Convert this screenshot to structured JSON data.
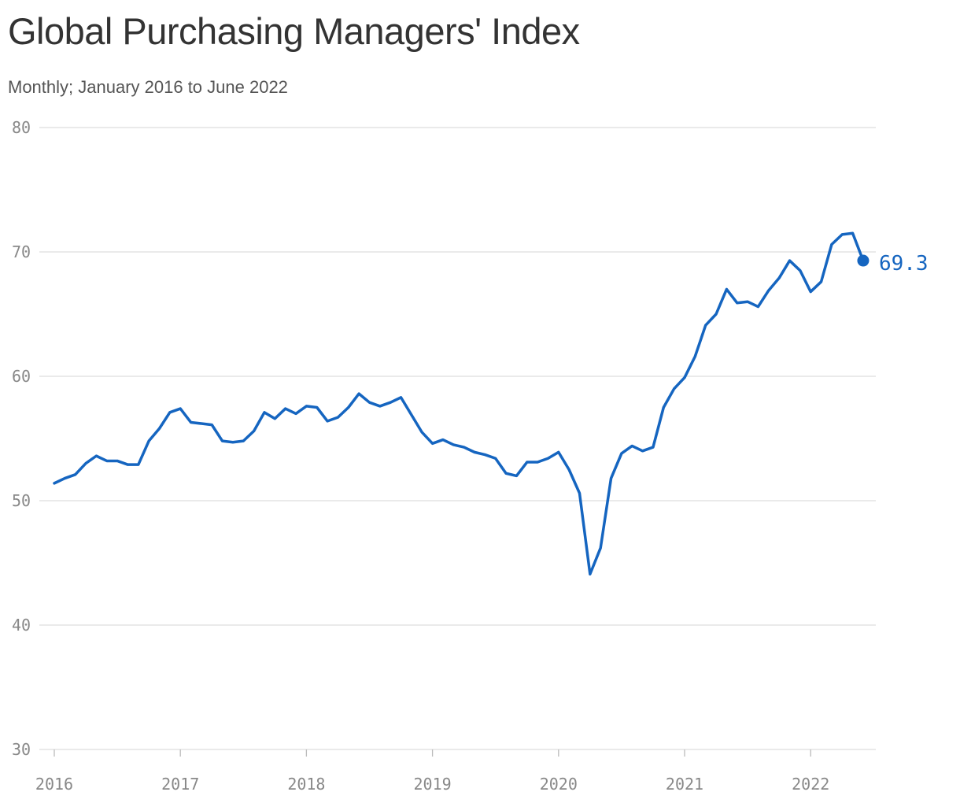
{
  "title": "Global Purchasing Managers' Index",
  "subtitle": "Monthly; January 2016 to June 2022",
  "colors": {
    "line": "#1565c0",
    "grid": "#dddddd",
    "tick_text": "#888888",
    "title": "#333333"
  },
  "chart_data": {
    "type": "line",
    "title": "Global Purchasing Managers' Index",
    "subtitle": "Monthly; January 2016 to June 2022",
    "xlabel": "",
    "ylabel": "",
    "ylim": [
      30,
      80
    ],
    "yticks": [
      30,
      40,
      50,
      60,
      70,
      80
    ],
    "xticks": [
      "2016",
      "2017",
      "2018",
      "2019",
      "2020",
      "2021",
      "2022"
    ],
    "grid": "horizontal",
    "legend": "none",
    "end_label": "69.3",
    "series": [
      {
        "x": [
          "2016-01",
          "2016-02",
          "2016-03",
          "2016-04",
          "2016-05",
          "2016-06",
          "2016-07",
          "2016-08",
          "2016-09",
          "2016-10",
          "2016-11",
          "2016-12",
          "2017-01",
          "2017-02",
          "2017-03",
          "2017-04",
          "2017-05",
          "2017-06",
          "2017-07",
          "2017-08",
          "2017-09",
          "2017-10",
          "2017-11",
          "2017-12",
          "2018-01",
          "2018-02",
          "2018-03",
          "2018-04",
          "2018-05",
          "2018-06",
          "2018-07",
          "2018-08",
          "2018-09",
          "2018-10",
          "2018-11",
          "2018-12",
          "2019-01",
          "2019-02",
          "2019-03",
          "2019-04",
          "2019-05",
          "2019-06",
          "2019-07",
          "2019-08",
          "2019-09",
          "2019-10",
          "2019-11",
          "2019-12",
          "2020-01",
          "2020-02",
          "2020-03",
          "2020-04",
          "2020-05",
          "2020-06",
          "2020-07",
          "2020-08",
          "2020-09",
          "2020-10",
          "2020-11",
          "2020-12",
          "2021-01",
          "2021-02",
          "2021-03",
          "2021-04",
          "2021-05",
          "2021-06",
          "2021-07",
          "2021-08",
          "2021-09",
          "2021-10",
          "2021-11",
          "2021-12",
          "2022-01",
          "2022-02",
          "2022-03",
          "2022-04",
          "2022-05",
          "2022-06"
        ],
        "values": [
          51.4,
          51.8,
          52.1,
          53.0,
          53.6,
          53.2,
          53.2,
          52.9,
          52.9,
          54.8,
          55.8,
          57.1,
          57.4,
          56.3,
          56.2,
          56.1,
          54.8,
          54.7,
          54.8,
          55.6,
          57.1,
          56.6,
          57.4,
          57.0,
          57.6,
          57.5,
          56.4,
          56.7,
          57.5,
          58.6,
          57.9,
          57.6,
          57.9,
          58.3,
          56.9,
          55.5,
          54.6,
          54.9,
          54.5,
          54.3,
          53.9,
          53.7,
          53.4,
          52.2,
          52.0,
          53.1,
          53.1,
          53.4,
          53.9,
          52.5,
          50.6,
          44.1,
          46.2,
          51.8,
          53.8,
          54.4,
          54.0,
          54.3,
          57.5,
          59.0,
          59.9,
          61.6,
          64.1,
          65.0,
          67.0,
          65.9,
          66.0,
          65.6,
          66.9,
          67.9,
          69.3,
          68.5,
          66.8,
          67.6,
          70.6,
          71.4,
          71.5,
          69.3
        ]
      }
    ]
  }
}
